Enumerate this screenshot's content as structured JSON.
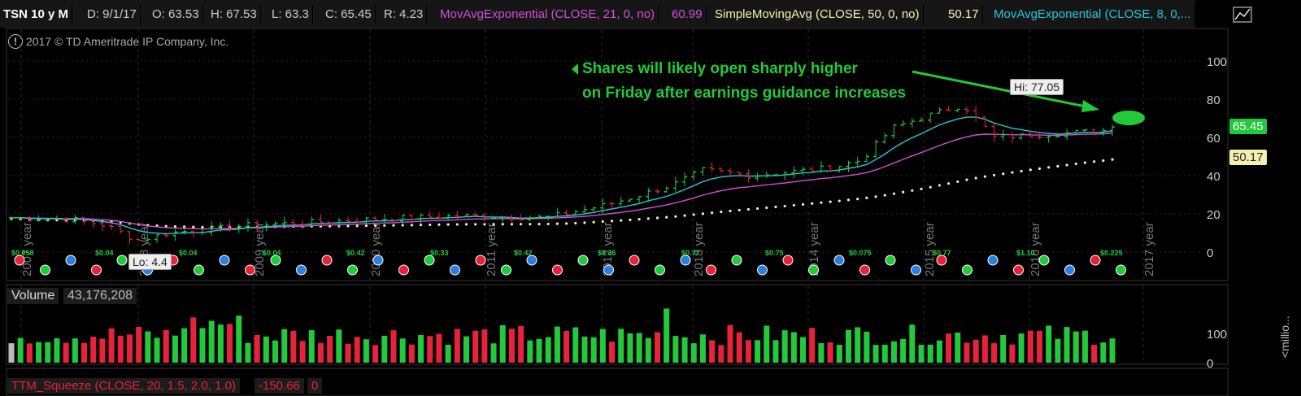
{
  "header": {
    "symbol": "TSN 10 y M",
    "date": "D: 9/1/17",
    "open": "O: 63.53",
    "high": "H: 67.53",
    "low": "L: 63.3",
    "close": "C: 65.45",
    "range": "R: 4.23",
    "ema21_label": "MovAvgExponential (CLOSE, 21, 0, no)",
    "ema21_value": "60.99",
    "sma50_label": "SimpleMovingAvg (CLOSE, 50, 0, no)",
    "sma50_value": "50.17",
    "ema8_label": "MovAvgExponential (CLOSE, 8, 0,..."
  },
  "copyright": "2017 © TD Ameritrade IP Company, Inc.",
  "annotation": {
    "line1": "Shares will likely open sharply higher",
    "line2": "on Friday after earnings guidance increases"
  },
  "hi_label": "Hi: 77.05",
  "lo_label": "Lo: 4.4",
  "last_price_tag": "65.45",
  "sma_tag": "50.17",
  "volume_panel": {
    "label": "Volume",
    "value": "43,176,208",
    "axis_label": "<millio..."
  },
  "squeeze_panel": {
    "label": "TTM_Squeeze (CLOSE, 20, 1.5, 2.0, 1.0)",
    "value": "-150.66",
    "value2": "0"
  },
  "colors": {
    "up": "#22c93b",
    "down": "#e8223a",
    "ema21": "#d24fd8",
    "sma50": "#f5f0b0",
    "ema8": "#22c8d8",
    "annotation": "#22c93b"
  },
  "chart_data": {
    "type": "candlestick",
    "ylim": [
      -10,
      110
    ],
    "yticks": [
      "0",
      "20",
      "40",
      "60",
      "80",
      "100"
    ],
    "year_labels": [
      "2007 year",
      "2008 year",
      "2009 year",
      "2010 year",
      "2011 year",
      "2012 year",
      "2013 year",
      "2014 year",
      "2015 year",
      "2016 year",
      "2017 year"
    ],
    "dividend_labels": [
      "$0.058",
      "$0.04",
      "$0.04",
      "$0.04",
      "$0.42",
      "$0.33",
      "$0.42",
      "$0.36",
      "$0.72",
      "$0.75",
      "$0.075",
      "$0.77",
      "$1.10",
      "$0.225"
    ],
    "high": 77.05,
    "low": 4.4,
    "last": 65.45,
    "ema21_last": 60.99,
    "sma50_last": 50.17,
    "volume_yticks": [
      "100",
      "0"
    ]
  }
}
